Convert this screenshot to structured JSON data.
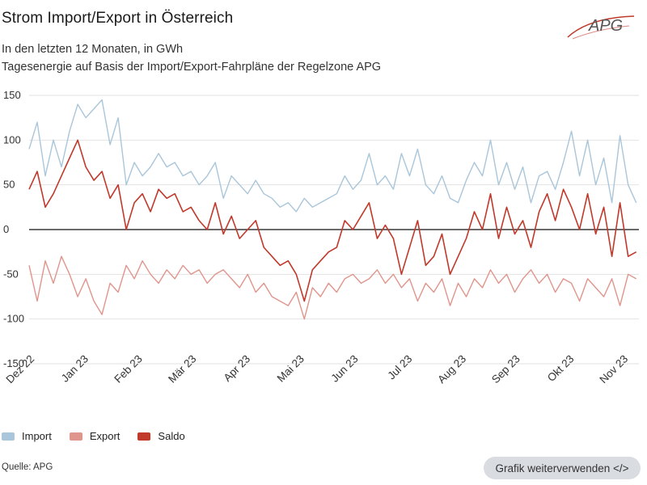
{
  "header": {
    "title": "Strom Import/Export in Österreich",
    "subtitle1": "In den letzten 12 Monaten, in GWh",
    "subtitle2": "Tagesenergie auf Basis der Import/Export-Fahrpläne der Regelzone APG",
    "logo_text": "APG"
  },
  "legend": [
    {
      "name": "Import",
      "color": "#a9c6da"
    },
    {
      "name": "Export",
      "color": "#e0958c"
    },
    {
      "name": "Saldo",
      "color": "#c0392b"
    }
  ],
  "footer": {
    "source": "Quelle: APG",
    "reuse_button": "Grafik weiterverwenden </>"
  },
  "chart_data": {
    "type": "line",
    "title": "Strom Import/Export in Österreich",
    "subtitle": "In den letzten 12 Monaten, in GWh",
    "xlabel": "",
    "ylabel": "GWh",
    "ylim": [
      -150,
      150
    ],
    "yticks": [
      150,
      100,
      50,
      0,
      -50,
      -100,
      -150
    ],
    "grid": true,
    "legend_position": "bottom-left",
    "x_tick_labels": [
      "Dez 22",
      "Jan 23",
      "Feb 23",
      "Mär 23",
      "Apr 23",
      "Mai 23",
      "Jun 23",
      "Jul 23",
      "Aug 23",
      "Sep 23",
      "Okt 23",
      "Nov 23"
    ],
    "x_range_months": [
      0,
      11.3
    ],
    "series": [
      {
        "name": "Import",
        "color": "#a9c6da",
        "x": [
          0,
          0.15,
          0.3,
          0.45,
          0.6,
          0.75,
          0.9,
          1.05,
          1.2,
          1.35,
          1.5,
          1.65,
          1.8,
          1.95,
          2.1,
          2.25,
          2.4,
          2.55,
          2.7,
          2.85,
          3.0,
          3.15,
          3.3,
          3.45,
          3.6,
          3.75,
          3.9,
          4.05,
          4.2,
          4.35,
          4.5,
          4.65,
          4.8,
          4.95,
          5.1,
          5.25,
          5.4,
          5.55,
          5.7,
          5.85,
          6.0,
          6.15,
          6.3,
          6.45,
          6.6,
          6.75,
          6.9,
          7.05,
          7.2,
          7.35,
          7.5,
          7.65,
          7.8,
          7.95,
          8.1,
          8.25,
          8.4,
          8.55,
          8.7,
          8.85,
          9.0,
          9.15,
          9.3,
          9.45,
          9.6,
          9.75,
          9.9,
          10.05,
          10.2,
          10.35,
          10.5,
          10.65,
          10.8,
          10.95,
          11.1,
          11.25
        ],
        "values": [
          90,
          120,
          60,
          100,
          70,
          110,
          140,
          125,
          135,
          145,
          95,
          125,
          50,
          75,
          60,
          70,
          85,
          70,
          75,
          60,
          65,
          50,
          60,
          75,
          35,
          60,
          50,
          40,
          55,
          40,
          35,
          25,
          30,
          20,
          35,
          25,
          30,
          35,
          40,
          60,
          45,
          55,
          85,
          50,
          60,
          45,
          85,
          60,
          90,
          50,
          40,
          60,
          35,
          30,
          55,
          75,
          60,
          100,
          50,
          75,
          45,
          70,
          30,
          60,
          65,
          45,
          75,
          110,
          60,
          100,
          50,
          80,
          30,
          105,
          50,
          30
        ]
      },
      {
        "name": "Export",
        "color": "#e0958c",
        "x": [
          0,
          0.15,
          0.3,
          0.45,
          0.6,
          0.75,
          0.9,
          1.05,
          1.2,
          1.35,
          1.5,
          1.65,
          1.8,
          1.95,
          2.1,
          2.25,
          2.4,
          2.55,
          2.7,
          2.85,
          3.0,
          3.15,
          3.3,
          3.45,
          3.6,
          3.75,
          3.9,
          4.05,
          4.2,
          4.35,
          4.5,
          4.65,
          4.8,
          4.95,
          5.1,
          5.25,
          5.4,
          5.55,
          5.7,
          5.85,
          6.0,
          6.15,
          6.3,
          6.45,
          6.6,
          6.75,
          6.9,
          7.05,
          7.2,
          7.35,
          7.5,
          7.65,
          7.8,
          7.95,
          8.1,
          8.25,
          8.4,
          8.55,
          8.7,
          8.85,
          9.0,
          9.15,
          9.3,
          9.45,
          9.6,
          9.75,
          9.9,
          10.05,
          10.2,
          10.35,
          10.5,
          10.65,
          10.8,
          10.95,
          11.1,
          11.25
        ],
        "values": [
          -40,
          -80,
          -35,
          -60,
          -30,
          -50,
          -75,
          -55,
          -80,
          -95,
          -60,
          -70,
          -40,
          -55,
          -35,
          -50,
          -60,
          -45,
          -55,
          -40,
          -50,
          -45,
          -60,
          -50,
          -45,
          -55,
          -65,
          -50,
          -70,
          -60,
          -75,
          -80,
          -85,
          -70,
          -100,
          -65,
          -75,
          -60,
          -70,
          -55,
          -50,
          -60,
          -55,
          -45,
          -60,
          -50,
          -65,
          -55,
          -80,
          -60,
          -70,
          -55,
          -85,
          -60,
          -75,
          -55,
          -65,
          -45,
          -60,
          -50,
          -70,
          -55,
          -45,
          -60,
          -50,
          -70,
          -55,
          -60,
          -80,
          -55,
          -65,
          -75,
          -55,
          -85,
          -50,
          -55
        ]
      },
      {
        "name": "Saldo",
        "color": "#c0392b",
        "x": [
          0,
          0.15,
          0.3,
          0.45,
          0.6,
          0.75,
          0.9,
          1.05,
          1.2,
          1.35,
          1.5,
          1.65,
          1.8,
          1.95,
          2.1,
          2.25,
          2.4,
          2.55,
          2.7,
          2.85,
          3.0,
          3.15,
          3.3,
          3.45,
          3.6,
          3.75,
          3.9,
          4.05,
          4.2,
          4.35,
          4.5,
          4.65,
          4.8,
          4.95,
          5.1,
          5.25,
          5.4,
          5.55,
          5.7,
          5.85,
          6.0,
          6.15,
          6.3,
          6.45,
          6.6,
          6.75,
          6.9,
          7.05,
          7.2,
          7.35,
          7.5,
          7.65,
          7.8,
          7.95,
          8.1,
          8.25,
          8.4,
          8.55,
          8.7,
          8.85,
          9.0,
          9.15,
          9.3,
          9.45,
          9.6,
          9.75,
          9.9,
          10.05,
          10.2,
          10.35,
          10.5,
          10.65,
          10.8,
          10.95,
          11.1,
          11.25
        ],
        "values": [
          45,
          65,
          25,
          40,
          60,
          80,
          100,
          70,
          55,
          65,
          35,
          50,
          0,
          30,
          40,
          20,
          45,
          35,
          40,
          20,
          25,
          10,
          0,
          30,
          -5,
          15,
          -10,
          0,
          10,
          -20,
          -30,
          -40,
          -35,
          -50,
          -80,
          -45,
          -35,
          -25,
          -20,
          10,
          0,
          15,
          30,
          -10,
          5,
          -10,
          -50,
          -20,
          10,
          -40,
          -30,
          -5,
          -50,
          -30,
          -10,
          20,
          0,
          40,
          -10,
          25,
          -5,
          10,
          -20,
          20,
          40,
          10,
          45,
          25,
          0,
          40,
          -5,
          25,
          -30,
          30,
          -30,
          -25
        ]
      }
    ]
  }
}
